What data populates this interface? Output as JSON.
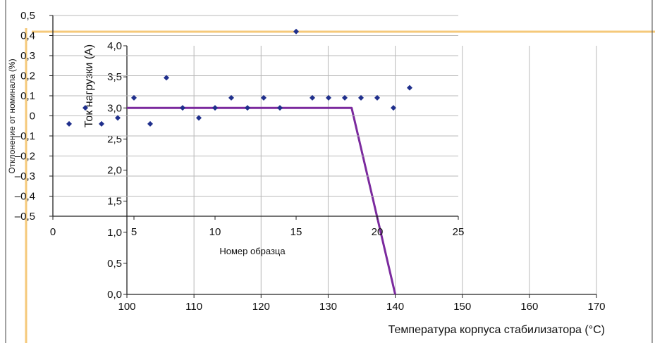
{
  "colors": {
    "frame_accent": "#f5c97a",
    "deviation_points": "#1f2f8c",
    "current_line": "#7b2a9e",
    "grid": "#b9b9b9",
    "axis": "#222222"
  },
  "chart_data": [
    {
      "type": "scatter",
      "title": "",
      "xlabel": "Номер образца",
      "ylabel": "Отклонение от номинала (%)",
      "xlim": [
        0,
        25
      ],
      "ylim": [
        -0.5,
        0.5
      ],
      "x_ticks": [
        "0",
        "5",
        "10",
        "15",
        "20",
        "25"
      ],
      "y_ticks": [
        "0,5",
        "0,4",
        "0,3",
        "0,2",
        "0,1",
        "0",
        "–0,1",
        "–0,2",
        "–0,3",
        "–0,4",
        "–0,5"
      ],
      "grid": true,
      "series": [
        {
          "x": [
            1,
            2,
            3,
            4,
            5,
            6,
            7,
            8,
            9,
            10,
            11,
            12,
            13,
            14,
            15,
            16,
            17,
            18,
            19,
            20,
            21,
            22
          ],
          "y": [
            -0.04,
            0.04,
            -0.04,
            -0.01,
            0.09,
            -0.04,
            0.19,
            0.04,
            -0.01,
            0.04,
            0.09,
            0.04,
            0.09,
            0.04,
            0.42,
            0.09,
            0.09,
            0.09,
            0.09,
            0.09,
            0.04,
            0.14
          ]
        }
      ]
    },
    {
      "type": "line",
      "title": "",
      "xlabel": "Температура корпуса стабилизатора (°С)",
      "ylabel": "Ток нагрузки (А)",
      "xlim": [
        100,
        170
      ],
      "ylim": [
        0,
        4.0
      ],
      "x_ticks": [
        "100",
        "110",
        "120",
        "130",
        "140",
        "150",
        "160",
        "170"
      ],
      "y_ticks": [
        "4,0",
        "3,5",
        "3,0",
        "2,5",
        "2,0",
        "1,5",
        "1,0",
        "0,5",
        "0,0"
      ],
      "grid": true,
      "series": [
        {
          "x": [
            100,
            133.5,
            140
          ],
          "y": [
            3.0,
            3.0,
            0.0
          ]
        }
      ]
    }
  ]
}
